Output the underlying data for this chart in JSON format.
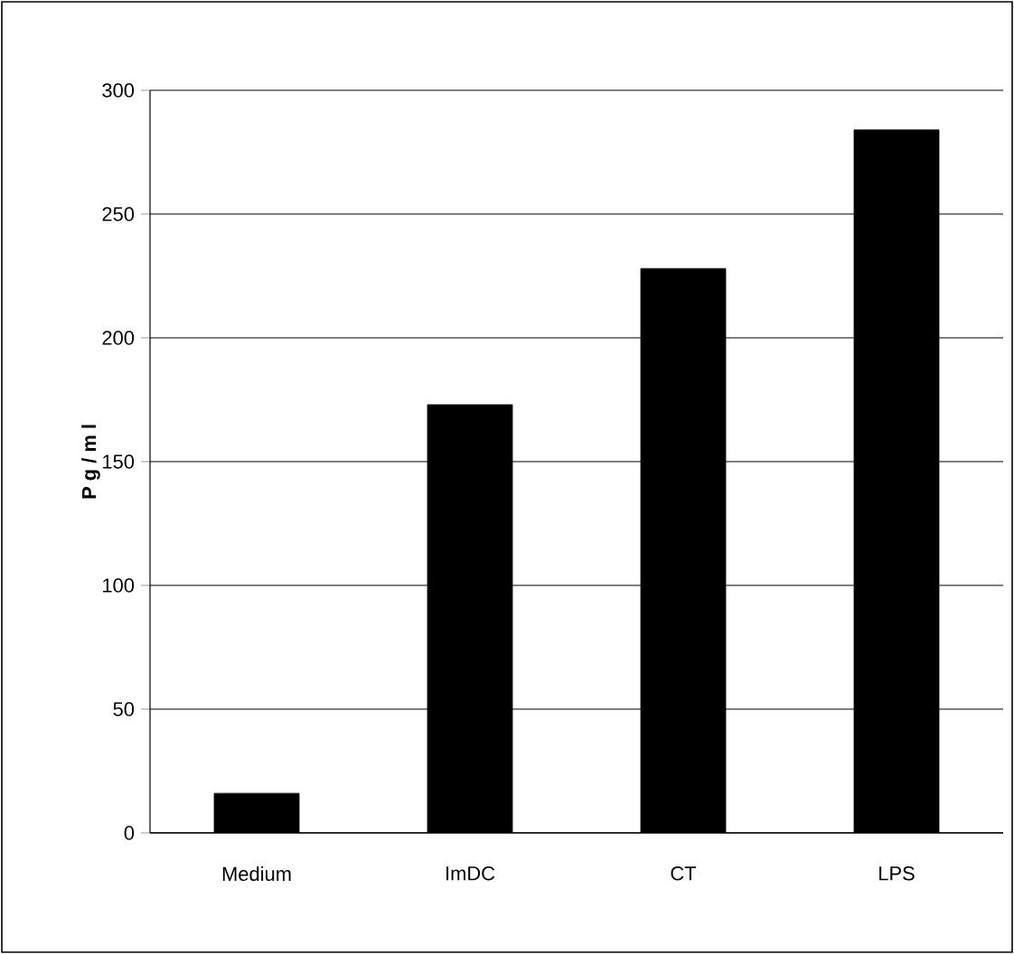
{
  "chart_data": {
    "type": "bar",
    "ylabel": "P g / m l",
    "categories": [
      "Medium",
      "ImDC",
      "CT",
      "LPS"
    ],
    "values": [
      16,
      173,
      228,
      284
    ],
    "color": "#000000",
    "ylim": [
      0,
      300
    ],
    "yticks": [
      0,
      50,
      100,
      150,
      200,
      250,
      300
    ],
    "grid": "y"
  }
}
